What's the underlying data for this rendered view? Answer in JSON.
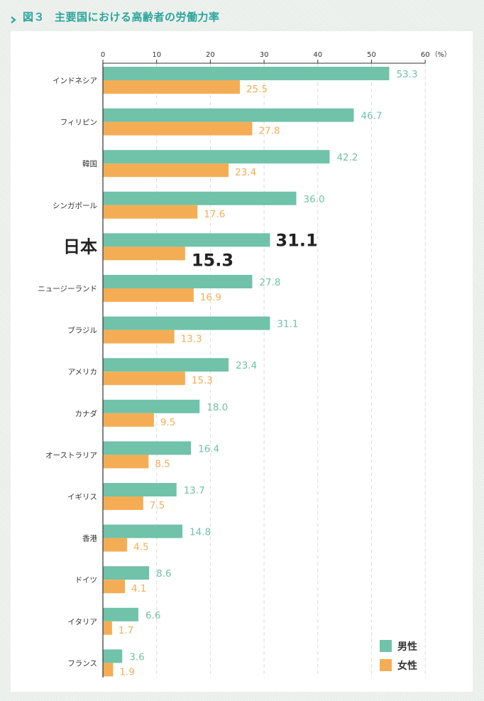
{
  "figure": {
    "number": "図３",
    "title": "主要国における高齢者の労働力率"
  },
  "colors": {
    "male": "#70c2a8",
    "female": "#f4ad55",
    "title": "#2aa59a",
    "text": "#333333",
    "highlight_text": "#222222"
  },
  "chart_data": {
    "type": "bar",
    "orientation": "horizontal",
    "unit_label": "（%）",
    "xlim": [
      0,
      60
    ],
    "xticks": [
      0,
      10,
      20,
      30,
      40,
      50,
      60
    ],
    "grid": "vertical dashed",
    "legend_position": "bottom-right",
    "highlight_category": "日本",
    "categories": [
      "インドネシア",
      "フィリピン",
      "韓国",
      "シンガポール",
      "日本",
      "ニュージーランド",
      "ブラジル",
      "アメリカ",
      "カナダ",
      "オーストラリア",
      "イギリス",
      "香港",
      "ドイツ",
      "イタリア",
      "フランス"
    ],
    "series": [
      {
        "name": "男性",
        "values": [
          53.3,
          46.7,
          42.2,
          36.0,
          31.1,
          27.8,
          31.1,
          23.4,
          18.0,
          16.4,
          13.7,
          14.8,
          8.6,
          6.6,
          3.6
        ]
      },
      {
        "name": "女性",
        "values": [
          25.5,
          27.8,
          23.4,
          17.6,
          15.3,
          16.9,
          13.3,
          15.3,
          9.5,
          8.5,
          7.5,
          4.5,
          4.1,
          1.7,
          1.9
        ]
      }
    ]
  }
}
